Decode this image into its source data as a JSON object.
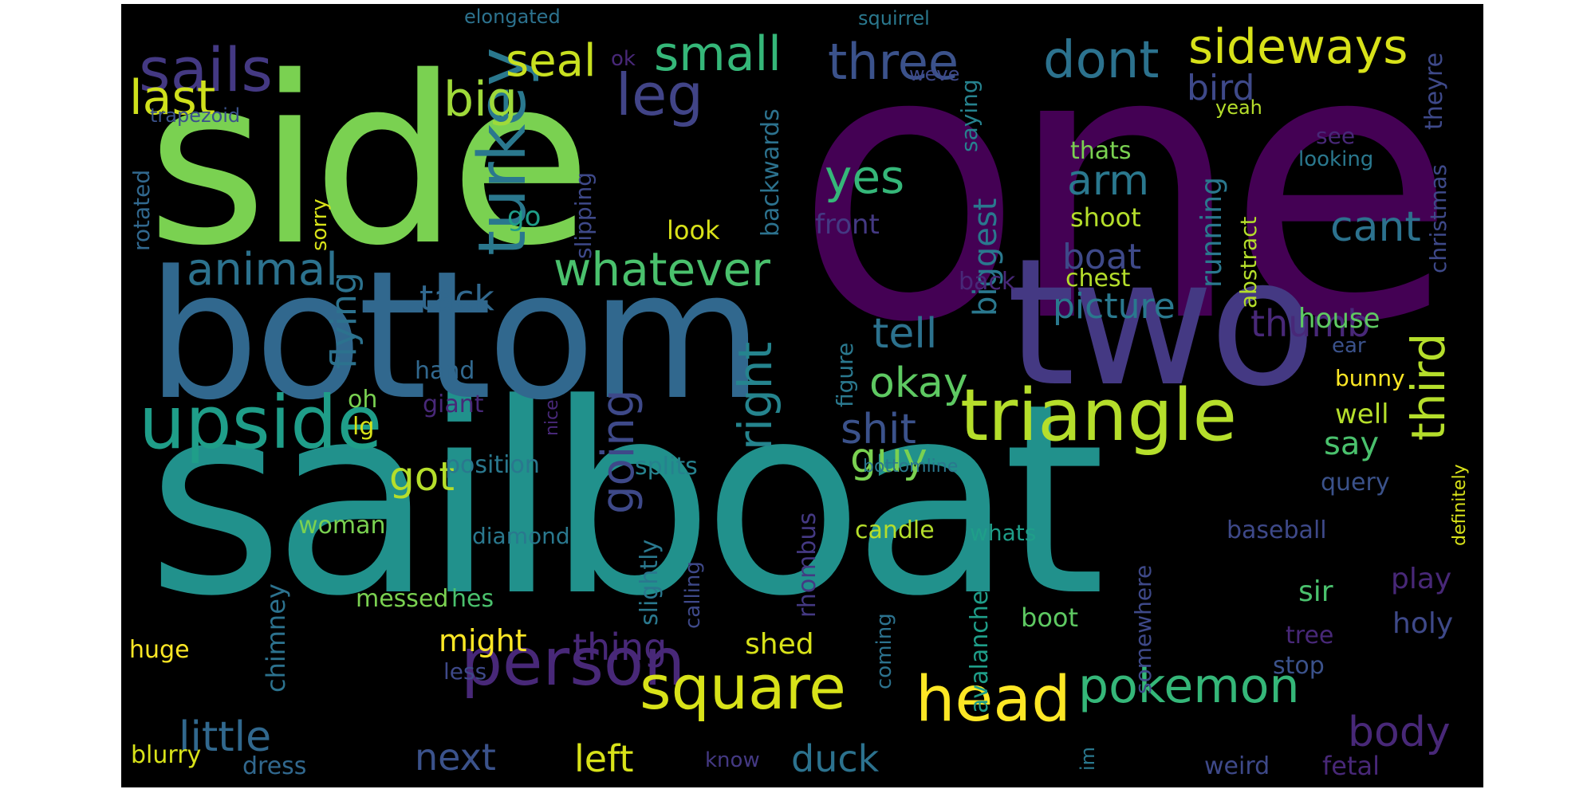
{
  "colors": {
    "background": "#000000",
    "page": "#ffffff",
    "palette": {
      "dark_purple": "#440154",
      "purple": "#482878",
      "indigo": "#3e4989",
      "blue": "#31688e",
      "teal_blue": "#26828e",
      "teal": "#1f9e89",
      "green": "#35b779",
      "lime": "#6ece58",
      "yellow_green": "#b5de2b",
      "yellow": "#fde725"
    }
  },
  "words": [
    {
      "text": "one",
      "color": "#440154"
    },
    {
      "text": "side",
      "color": "#7ad151"
    },
    {
      "text": "sailboat",
      "color": "#21918c"
    },
    {
      "text": "bottom",
      "color": "#31688e"
    },
    {
      "text": "two",
      "color": "#443983"
    },
    {
      "text": "triangle",
      "color": "#b5de2b"
    },
    {
      "text": "upside",
      "color": "#1f9e89"
    },
    {
      "text": "turkey",
      "color": "#2a788e"
    },
    {
      "text": "sails",
      "color": "#443983"
    },
    {
      "text": "head",
      "color": "#fde725"
    },
    {
      "text": "person",
      "color": "#482878"
    },
    {
      "text": "square",
      "color": "#d8e219"
    },
    {
      "text": "pokemon",
      "color": "#35b779"
    },
    {
      "text": "leg",
      "color": "#414487"
    },
    {
      "text": "three",
      "color": "#3b528b"
    },
    {
      "text": "dont",
      "color": "#2c728e"
    },
    {
      "text": "sideways",
      "color": "#d8e219"
    },
    {
      "text": "small",
      "color": "#35b779"
    },
    {
      "text": "seal",
      "color": "#c8e020"
    },
    {
      "text": "big",
      "color": "#9fda3a"
    },
    {
      "text": "last",
      "color": "#d0e11c"
    },
    {
      "text": "bird",
      "color": "#3e4989"
    },
    {
      "text": "whatever",
      "color": "#4ac16d"
    },
    {
      "text": "animal",
      "color": "#2c728e"
    },
    {
      "text": "yes",
      "color": "#35b779"
    },
    {
      "text": "arm",
      "color": "#2a788e"
    },
    {
      "text": "cant",
      "color": "#2c728e"
    },
    {
      "text": "third",
      "color": "#b5de2b"
    },
    {
      "text": "right",
      "color": "#25848e"
    },
    {
      "text": "going",
      "color": "#3e4989"
    },
    {
      "text": "got",
      "color": "#b5de2b"
    },
    {
      "text": "guy",
      "color": "#7ad151"
    },
    {
      "text": "okay",
      "color": "#5ec962"
    },
    {
      "text": "tell",
      "color": "#2c728e"
    },
    {
      "text": "shit",
      "color": "#3b528b"
    },
    {
      "text": "picture",
      "color": "#2a788e"
    },
    {
      "text": "thumb",
      "color": "#482878"
    },
    {
      "text": "little",
      "color": "#31688e"
    },
    {
      "text": "body",
      "color": "#482878"
    },
    {
      "text": "duck",
      "color": "#2c728e"
    },
    {
      "text": "left",
      "color": "#d8e219"
    },
    {
      "text": "next",
      "color": "#3b528b"
    },
    {
      "text": "thing",
      "color": "#482878"
    },
    {
      "text": "boat",
      "color": "#3e4989"
    },
    {
      "text": "flying",
      "color": "#2c728e"
    },
    {
      "text": "tack",
      "color": "#31688e"
    },
    {
      "text": "house",
      "color": "#5ec962"
    },
    {
      "text": "say",
      "color": "#4ac16d"
    },
    {
      "text": "chest",
      "color": "#b5de2b"
    },
    {
      "text": "shoot",
      "color": "#b5de2b"
    },
    {
      "text": "thats",
      "color": "#7ad151"
    },
    {
      "text": "running",
      "color": "#2a788e"
    },
    {
      "text": "abstract",
      "color": "#b5de2b"
    },
    {
      "text": "biggest",
      "color": "#2a788e"
    },
    {
      "text": "front",
      "color": "#443983"
    },
    {
      "text": "look",
      "color": "#d8e219"
    },
    {
      "text": "go",
      "color": "#1f9e89"
    },
    {
      "text": "backwards",
      "color": "#2c728e"
    },
    {
      "text": "saying",
      "color": "#26828e"
    },
    {
      "text": "weve",
      "color": "#3e4989"
    },
    {
      "text": "elongated",
      "color": "#2c728e"
    },
    {
      "text": "squirrel",
      "color": "#2a788e"
    },
    {
      "text": "ok",
      "color": "#482878"
    },
    {
      "text": "trapezoid",
      "color": "#3b528b"
    },
    {
      "text": "rotated",
      "color": "#31688e"
    },
    {
      "text": "sorry",
      "color": "#d8e219"
    },
    {
      "text": "slipping",
      "color": "#3e4989"
    },
    {
      "text": "yeah",
      "color": "#b5de2b"
    },
    {
      "text": "see",
      "color": "#482878"
    },
    {
      "text": "looking",
      "color": "#2a788e"
    },
    {
      "text": "christmas",
      "color": "#3e4989"
    },
    {
      "text": "theyre",
      "color": "#3e4989"
    },
    {
      "text": "back",
      "color": "#482878"
    },
    {
      "text": "ear",
      "color": "#3b528b"
    },
    {
      "text": "bunny",
      "color": "#fde725"
    },
    {
      "text": "well",
      "color": "#b5de2b"
    },
    {
      "text": "definitely",
      "color": "#d8e219"
    },
    {
      "text": "query",
      "color": "#3b528b"
    },
    {
      "text": "baseball",
      "color": "#3e4989"
    },
    {
      "text": "figure",
      "color": "#2a788e"
    },
    {
      "text": "bottomline",
      "color": "#2a788e"
    },
    {
      "text": "hand",
      "color": "#31688e"
    },
    {
      "text": "giant",
      "color": "#482878"
    },
    {
      "text": "oh",
      "color": "#7ad151"
    },
    {
      "text": "lg",
      "color": "#d8e219"
    },
    {
      "text": "nice",
      "color": "#482878"
    },
    {
      "text": "position",
      "color": "#2a788e"
    },
    {
      "text": "splits",
      "color": "#26828e"
    },
    {
      "text": "woman",
      "color": "#7ad151"
    },
    {
      "text": "diamond",
      "color": "#2a788e"
    },
    {
      "text": "candle",
      "color": "#b5de2b"
    },
    {
      "text": "whats",
      "color": "#1f9e89"
    },
    {
      "text": "rhombus",
      "color": "#443983"
    },
    {
      "text": "chimney",
      "color": "#2c728e"
    },
    {
      "text": "messed",
      "color": "#7ad151"
    },
    {
      "text": "hes",
      "color": "#4ac16d"
    },
    {
      "text": "might",
      "color": "#fde725"
    },
    {
      "text": "huge",
      "color": "#fde725"
    },
    {
      "text": "slightly",
      "color": "#2a788e"
    },
    {
      "text": "calling",
      "color": "#3e4989"
    },
    {
      "text": "shed",
      "color": "#d8e219"
    },
    {
      "text": "coming",
      "color": "#2c728e"
    },
    {
      "text": "avalanche",
      "color": "#1f9e89"
    },
    {
      "text": "boot",
      "color": "#5ec962"
    },
    {
      "text": "somewhere",
      "color": "#3e4989"
    },
    {
      "text": "sir",
      "color": "#4ac16d"
    },
    {
      "text": "play",
      "color": "#482878"
    },
    {
      "text": "holy",
      "color": "#3e4989"
    },
    {
      "text": "tree",
      "color": "#482878"
    },
    {
      "text": "stop",
      "color": "#3b528b"
    },
    {
      "text": "less",
      "color": "#3e4989"
    },
    {
      "text": "blurry",
      "color": "#d8e219"
    },
    {
      "text": "dress",
      "color": "#31688e"
    },
    {
      "text": "know",
      "color": "#443983"
    },
    {
      "text": "im",
      "color": "#2a788e"
    },
    {
      "text": "weird",
      "color": "#3e4989"
    },
    {
      "text": "fetal",
      "color": "#482878"
    }
  ]
}
